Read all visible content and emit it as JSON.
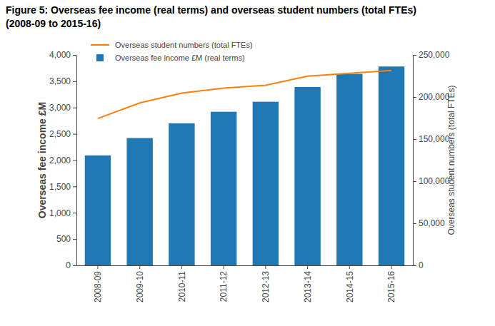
{
  "chart_data": {
    "type": "bar",
    "title": "Figure 5: Overseas fee income (real terms) and overseas student numbers (total FTEs)",
    "subtitle": "(2008-09 to 2015-16)",
    "y_label": "Overseas fee income £M",
    "y2_label": "Overseas student numbers (total FTEs)",
    "categories": [
      "2008-09",
      "2009-10",
      "2010-11",
      "2011-12",
      "2012-13",
      "2013-14",
      "2014-15",
      "2015-16"
    ],
    "series": [
      {
        "name": "Overseas student numbers (total FTEs)",
        "type": "line",
        "axis": "y2",
        "color": "#ff7f0e",
        "values": [
          174500,
          193000,
          204700,
          210600,
          213900,
          224800,
          228200,
          231500
        ]
      },
      {
        "name": "Overseas fee income £M (real terms)",
        "type": "bar",
        "color": "#1f77b4",
        "values": [
          2090,
          2420,
          2700,
          2920,
          3110,
          3390,
          3640,
          3780
        ]
      }
    ],
    "ylim": [
      0,
      4000
    ],
    "yticks": [
      0,
      500,
      {
        "value": 1000,
        "label": "1,000"
      },
      {
        "value": 1500,
        "label": "1,500"
      },
      {
        "value": 2000,
        "label": "2,000"
      },
      {
        "value": 2500,
        "label": "2,500"
      },
      {
        "value": 3000,
        "label": "3,000"
      },
      {
        "value": 3500,
        "label": "3,500"
      },
      {
        "value": 4000,
        "label": "4,000"
      }
    ],
    "y2lim": [
      0,
      250000
    ],
    "y2ticks": [
      0,
      {
        "value": 50000,
        "label": "50,000"
      },
      {
        "value": 100000,
        "label": "100,000"
      },
      {
        "value": 150000,
        "label": "150,000"
      },
      {
        "value": 200000,
        "label": "200,000"
      },
      {
        "value": 250000,
        "label": "250,000"
      }
    ],
    "grid": false,
    "legend": "top-left"
  }
}
